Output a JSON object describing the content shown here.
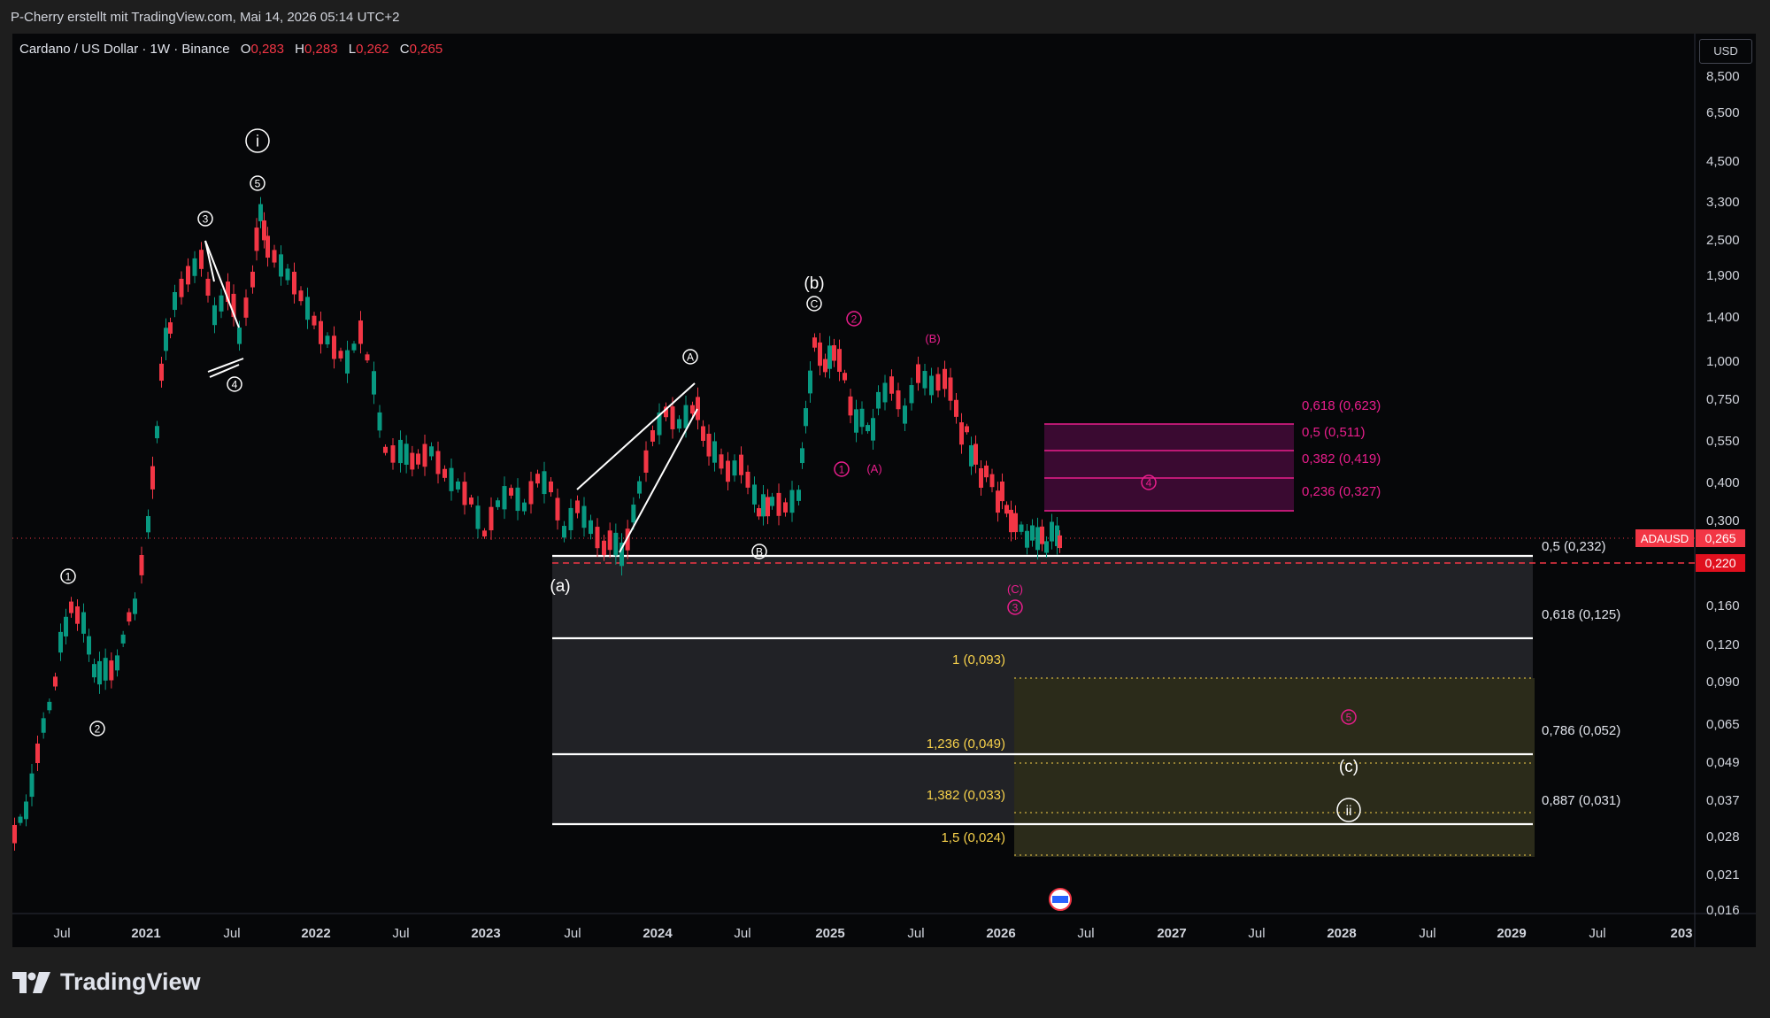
{
  "header": {
    "credit": "P-Cherry erstellt mit TradingView.com, Mai 14, 2026 05:14 UTC+2"
  },
  "legend": {
    "symbol": "Cardano / US Dollar · 1W · Binance",
    "open_label": "O",
    "open": "0,283",
    "high_label": "H",
    "high": "0,283",
    "low_label": "L",
    "low": "0,262",
    "close_label": "C",
    "close": "0,265"
  },
  "price_scale": {
    "currency": "USD",
    "ticks": [
      "8,500",
      "6,500",
      "4,500",
      "3,300",
      "2,500",
      "1,900",
      "1,400",
      "1,000",
      "0,750",
      "0,550",
      "0,400",
      "0,300",
      "0,160",
      "0,120",
      "0,090",
      "0,065",
      "0,049",
      "0,037",
      "0,028",
      "0,021",
      "0,016"
    ],
    "current_symbol": "ADAUSD",
    "current_price": "0,265",
    "alert_price": "0,220"
  },
  "time_axis": [
    "Jul",
    "2021",
    "Jul",
    "2022",
    "Jul",
    "2023",
    "Jul",
    "2024",
    "Jul",
    "2025",
    "Jul",
    "2026",
    "Jul",
    "2027",
    "Jul",
    "2028",
    "Jul",
    "2029",
    "Jul",
    "203"
  ],
  "wave_labels": {
    "white": [
      "①",
      "②",
      "③",
      "④",
      "⑤",
      "ⓘ",
      "(a)",
      "Ⓐ",
      "Ⓑ",
      "Ⓒ",
      "(b)",
      "(c)",
      "ⓘⓘ"
    ],
    "magenta": [
      "①",
      "②",
      "(A)",
      "(B)",
      "(C)",
      "③",
      "④",
      "⑤"
    ]
  },
  "fib_retracement_right": [
    "0,5 (0,232)",
    "0,618 (0,125)",
    "0,786 (0,052)",
    "0,887 (0,031)"
  ],
  "fib_extension": [
    "1 (0,093)",
    "1,236 (0,049)",
    "1,382 (0,033)",
    "1,5 (0,024)"
  ],
  "fib_resistance": [
    "0,618 (0,623)",
    "0,5 (0,511)",
    "0,382 (0,419)",
    "0,236 (0,327)"
  ],
  "colors": {
    "up": "#089981",
    "down": "#f23645",
    "magenta": "#e91e8c",
    "yellow": "#f7d14b",
    "background": "#060709"
  },
  "branding": {
    "logo_text": "TradingView",
    "logo_icon": "tradingview-logo-icon"
  }
}
